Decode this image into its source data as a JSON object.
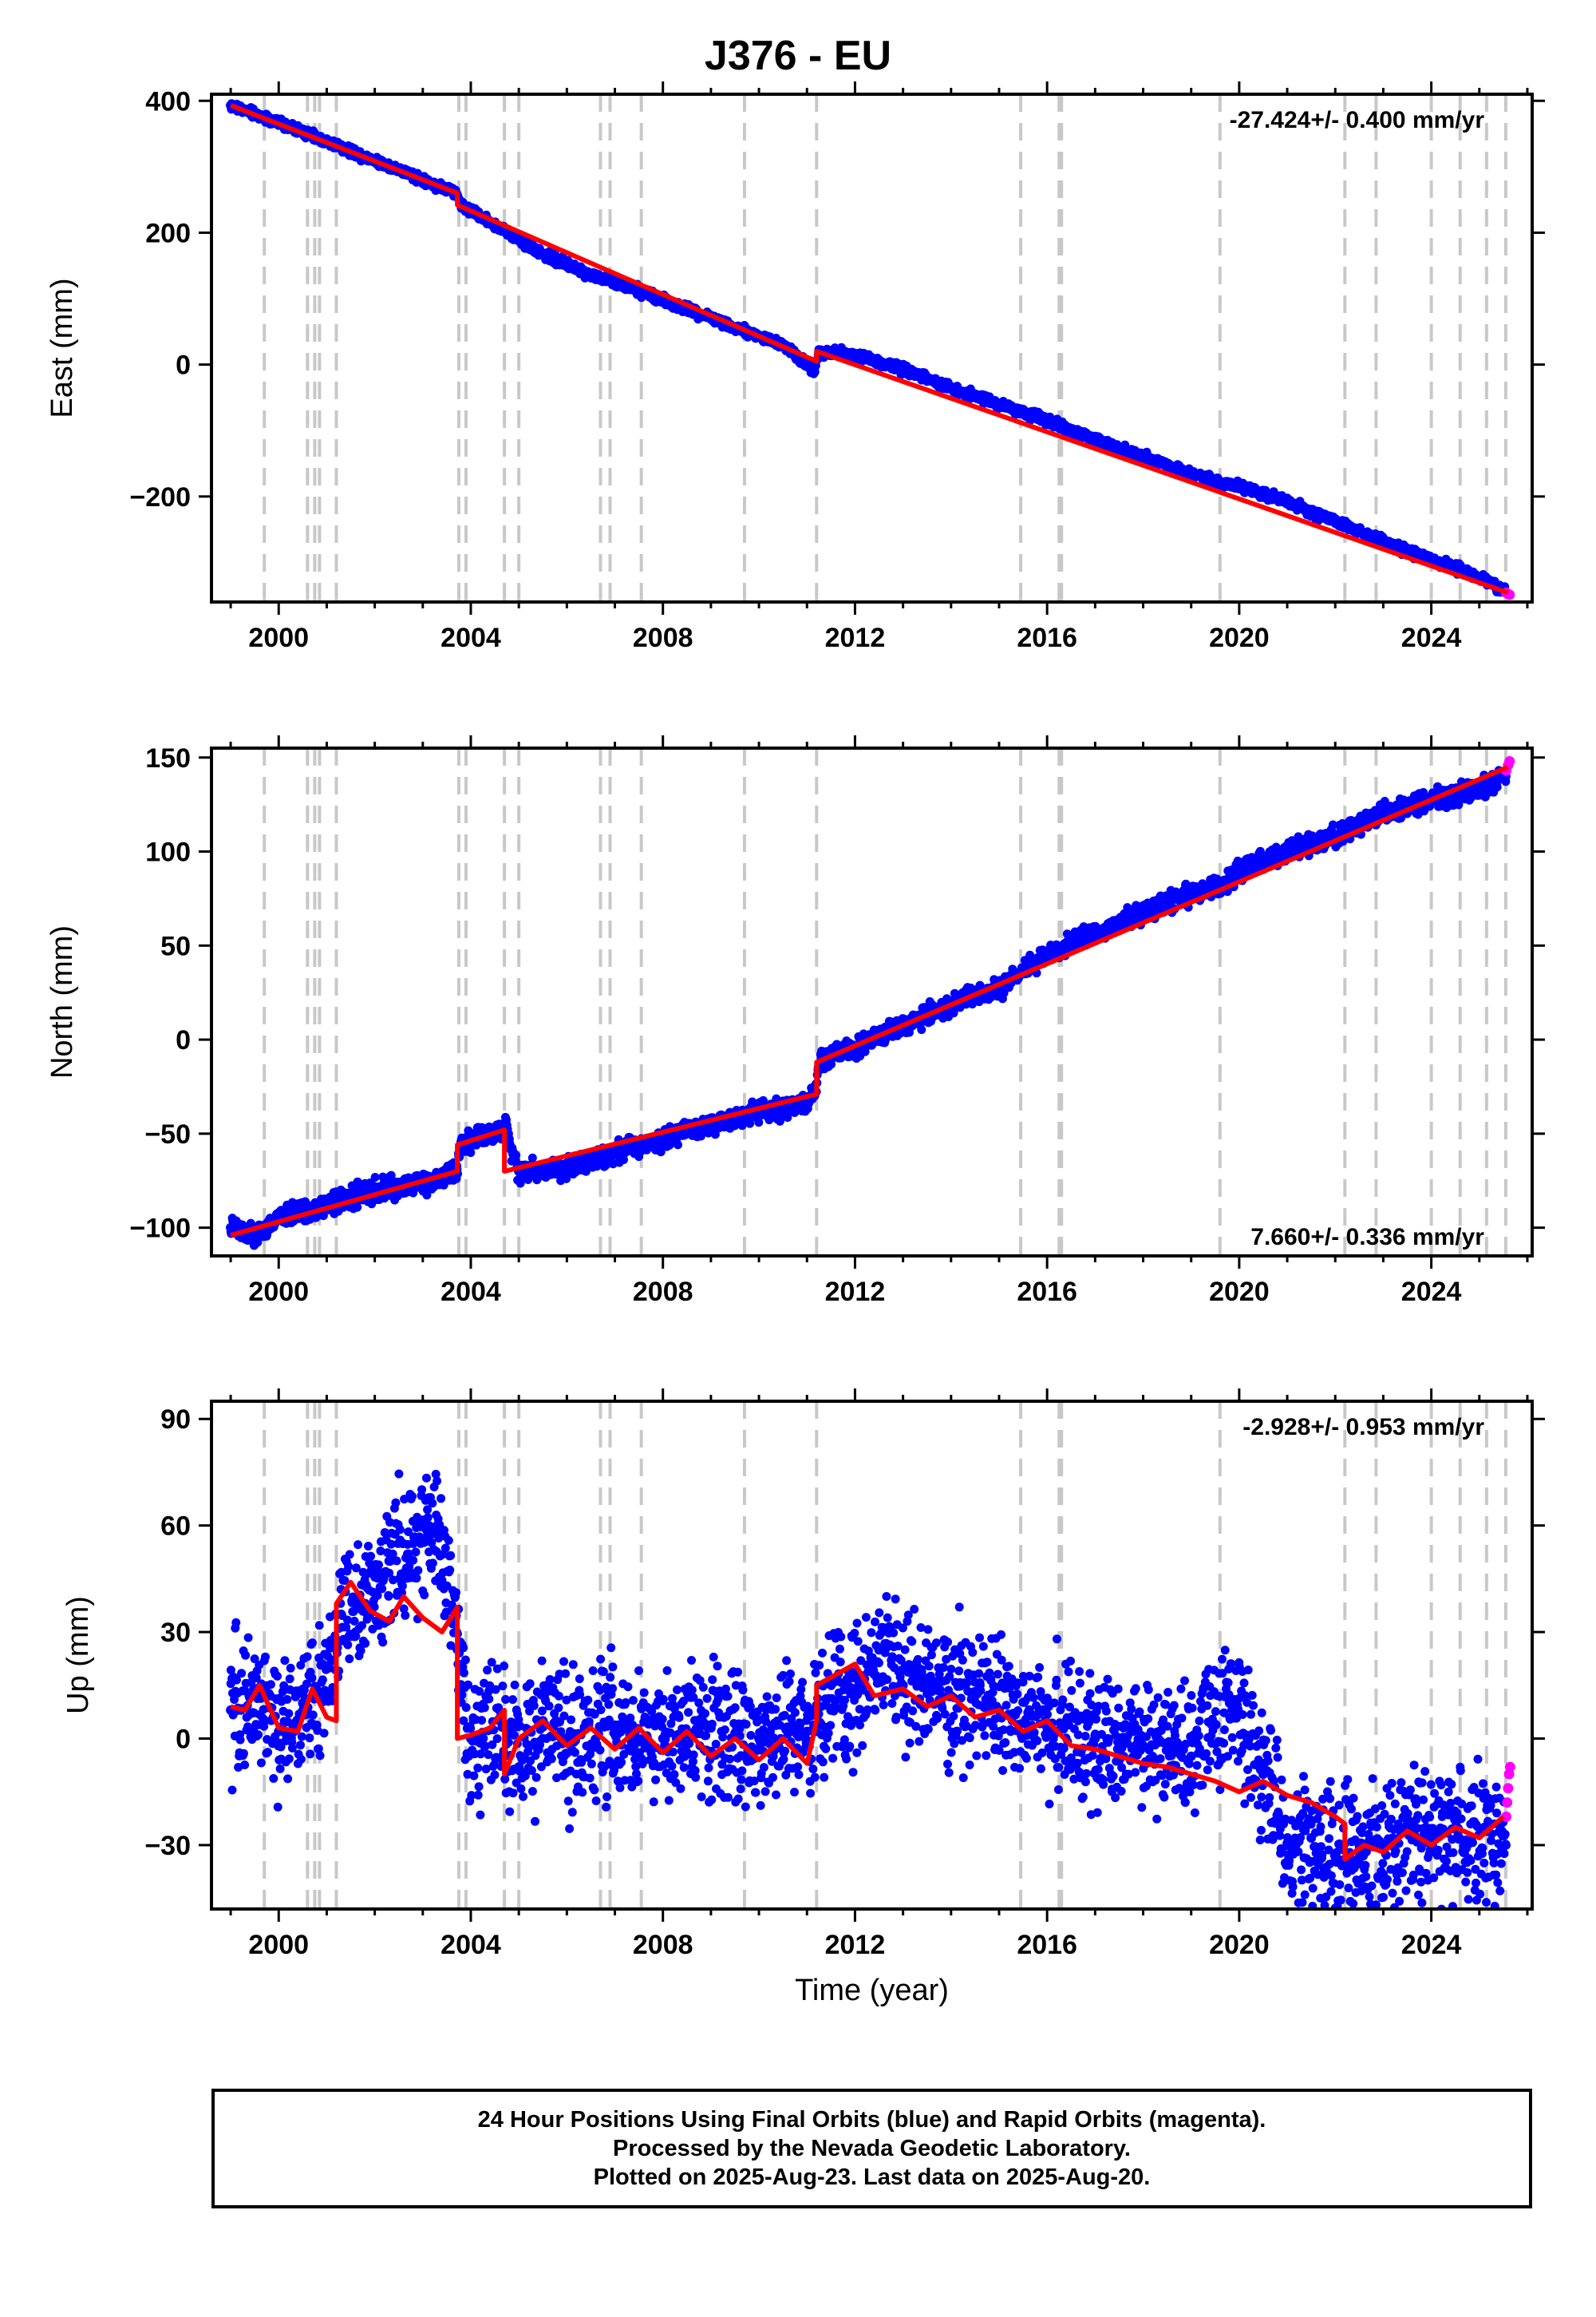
{
  "title": "J376 - EU",
  "footer": {
    "line1": "24 Hour Positions Using Final Orbits (blue) and Rapid Orbits (magenta).",
    "line2": "Processed by the Nevada Geodetic Laboratory.",
    "line3": "Plotted on 2025-Aug-23. Last data on 2025-Aug-20."
  },
  "colors": {
    "final_orbits": "#0000ff",
    "rapid_orbits": "#ff00ff",
    "model": "#ff0000",
    "event_lines": "#c8c8c8"
  },
  "event_lines_years": [
    1999.7,
    2000.6,
    2000.75,
    2000.85,
    2001.2,
    2003.75,
    2003.9,
    2004.7,
    2005.0,
    2006.7,
    2006.9,
    2007.55,
    2009.7,
    2011.2,
    2015.45,
    2016.25,
    2016.3,
    2019.6,
    2022.2,
    2022.85,
    2024.0,
    2024.6,
    2025.15,
    2025.55
  ],
  "chart_data": [
    {
      "type": "scatter",
      "name": "east",
      "title": "J376 - EU",
      "xlabel": "",
      "ylabel": "East (mm)",
      "xlim": [
        1998.6,
        2026.1
      ],
      "ylim": [
        -360,
        410
      ],
      "xticks": [
        2000,
        2004,
        2008,
        2012,
        2016,
        2020,
        2024
      ],
      "yticks": [
        400,
        200,
        0,
        -200
      ],
      "ytick_labels": [
        "400",
        "200",
        "0",
        "−200"
      ],
      "rate_text": "-27.424+/- 0.400 mm/yr",
      "rate_position": "top-right",
      "grid": false,
      "series": [
        {
          "name": "final_orbits",
          "x": [
            1999.0,
            2000.0,
            2001.0,
            2002.0,
            2003.0,
            2003.7,
            2003.8,
            2004.5,
            2005.5,
            2006.5,
            2007.5,
            2008.5,
            2009.5,
            2010.5,
            2011.15,
            2011.25,
            2012.0,
            2013.0,
            2014.0,
            2015.0,
            2016.0,
            2017.0,
            2018.0,
            2019.0,
            2019.6,
            2020.0,
            2021.0,
            2022.0,
            2023.0,
            2024.0,
            2025.0,
            2025.55
          ],
          "y": [
            393,
            367,
            338,
            310,
            281,
            259,
            243,
            212,
            168,
            136,
            112,
            84,
            57,
            30,
            -10,
            20,
            15,
            -7,
            -35,
            -60,
            -85,
            -113,
            -140,
            -165,
            -180,
            -185,
            -208,
            -238,
            -268,
            -295,
            -322,
            -345
          ]
        },
        {
          "name": "rapid_orbits",
          "x": [
            2025.56,
            2025.6,
            2025.63
          ],
          "y": [
            -346,
            -348,
            -349
          ]
        }
      ],
      "model_line": {
        "x": [
          1999.0,
          2003.72,
          2003.72,
          2011.2,
          2011.2,
          2025.6
        ],
        "y": [
          393,
          260,
          242,
          5,
          20,
          -346
        ]
      }
    },
    {
      "type": "scatter",
      "name": "north",
      "xlabel": "",
      "ylabel": "North (mm)",
      "xlim": [
        1998.6,
        2026.1
      ],
      "ylim": [
        -115,
        155
      ],
      "xticks": [
        2000,
        2004,
        2008,
        2012,
        2016,
        2020,
        2024
      ],
      "yticks": [
        150,
        100,
        50,
        0,
        -50,
        -100
      ],
      "ytick_labels": [
        "150",
        "100",
        "50",
        "0",
        "−50",
        "−100"
      ],
      "rate_text": "7.660+/- 0.336 mm/yr",
      "rate_position": "bottom-right",
      "grid": false,
      "series": [
        {
          "name": "final_orbits",
          "x": [
            1999.0,
            1999.5,
            2000.0,
            2001.0,
            2002.0,
            2003.0,
            2003.7,
            2003.8,
            2004.5,
            2004.7,
            2005.0,
            2006.0,
            2007.0,
            2008.0,
            2009.0,
            2010.0,
            2011.0,
            2011.15,
            2011.3,
            2012.0,
            2013.0,
            2014.0,
            2015.0,
            2016.0,
            2017.0,
            2018.0,
            2019.0,
            2019.6,
            2020.0,
            2021.0,
            2022.0,
            2023.0,
            2024.0,
            2025.0,
            2025.55
          ],
          "y": [
            -100,
            -105,
            -95,
            -88,
            -80,
            -76,
            -70,
            -55,
            -50,
            -45,
            -70,
            -68,
            -60,
            -52,
            -45,
            -38,
            -34,
            -30,
            -10,
            -5,
            8,
            18,
            28,
            45,
            57,
            67,
            78,
            80,
            90,
            100,
            108,
            120,
            128,
            133,
            140
          ]
        },
        {
          "name": "rapid_orbits",
          "x": [
            2025.56,
            2025.6,
            2025.63
          ],
          "y": [
            143,
            146,
            148
          ]
        }
      ],
      "model_line": {
        "x": [
          1999.0,
          2003.72,
          2003.72,
          2004.7,
          2004.7,
          2011.2,
          2011.2,
          2025.6
        ],
        "y": [
          -104,
          -70,
          -56,
          -48,
          -70,
          -29,
          -12,
          145
        ]
      }
    },
    {
      "type": "scatter",
      "name": "up",
      "xlabel": "Time (year)",
      "ylabel": "Up (mm)",
      "xlim": [
        1998.6,
        2026.1
      ],
      "ylim": [
        -48,
        95
      ],
      "xticks": [
        2000,
        2004,
        2008,
        2012,
        2016,
        2020,
        2024
      ],
      "yticks": [
        90,
        60,
        30,
        0,
        -30
      ],
      "ytick_labels": [
        "90",
        "60",
        "30",
        "0",
        "−30"
      ],
      "rate_text": "-2.928+/- 0.953 mm/yr",
      "rate_position": "top-right",
      "grid": false,
      "series": [
        {
          "name": "final_orbits",
          "x": [
            1999.0,
            1999.5,
            2000.0,
            2000.5,
            2001.0,
            2001.3,
            2001.8,
            2002.3,
            2002.8,
            2003.3,
            2003.7,
            2004.0,
            2004.6,
            2005.0,
            2005.5,
            2006.0,
            2007.0,
            2008.0,
            2009.0,
            2010.0,
            2011.0,
            2011.5,
            2012.0,
            2012.5,
            2013.0,
            2014.0,
            2015.0,
            2016.0,
            2017.0,
            2018.0,
            2019.0,
            2019.8,
            2020.5,
            2021.0,
            2021.5,
            2022.0,
            2022.5,
            2023.0,
            2024.0,
            2025.0,
            2025.55
          ],
          "y": [
            8,
            12,
            2,
            10,
            12,
            35,
            38,
            50,
            55,
            60,
            30,
            0,
            5,
            -8,
            5,
            0,
            2,
            0,
            3,
            0,
            2,
            8,
            14,
            25,
            15,
            12,
            8,
            3,
            0,
            -2,
            -5,
            10,
            -10,
            -30,
            -28,
            -33,
            -30,
            -30,
            -28,
            -27,
            -30
          ]
        },
        {
          "name": "rapid_orbits",
          "x": [
            2025.56,
            2025.58,
            2025.6,
            2025.62,
            2025.64
          ],
          "y": [
            -22,
            -18,
            -14,
            -10,
            -8
          ]
        }
      ],
      "model_line": {
        "x": [
          1999.0,
          1999.3,
          1999.6,
          2000.0,
          2000.4,
          2000.7,
          2001.0,
          2001.2,
          2001.2,
          2001.5,
          2001.9,
          2002.3,
          2002.6,
          2003.0,
          2003.4,
          2003.72,
          2003.72,
          2004.0,
          2004.4,
          2004.7,
          2004.7,
          2005.0,
          2005.5,
          2006.0,
          2006.5,
          2007.0,
          2007.5,
          2008.0,
          2008.5,
          2009.0,
          2009.5,
          2010.0,
          2010.5,
          2011.0,
          2011.2,
          2011.2,
          2011.6,
          2012.0,
          2012.4,
          2013.0,
          2013.5,
          2014.0,
          2014.5,
          2015.0,
          2015.5,
          2016.0,
          2016.5,
          2017.0,
          2017.5,
          2018.0,
          2018.5,
          2019.0,
          2019.5,
          2020.0,
          2020.5,
          2021.0,
          2021.5,
          2022.0,
          2022.2,
          2022.2,
          2022.6,
          2023.0,
          2023.5,
          2024.0,
          2024.5,
          2025.0,
          2025.5
        ],
        "y": [
          9,
          8,
          15,
          3,
          2,
          14,
          6,
          5,
          38,
          44,
          36,
          33,
          40,
          34,
          30,
          37,
          0,
          1,
          3,
          8,
          -10,
          0,
          5,
          -2,
          3,
          -3,
          3,
          -4,
          2,
          -5,
          0,
          -6,
          0,
          -7,
          5,
          15,
          18,
          21,
          12,
          14,
          9,
          12,
          6,
          8,
          2,
          5,
          -2,
          -3,
          -5,
          -7,
          -8,
          -10,
          -12,
          -15,
          -12,
          -16,
          -18,
          -22,
          -24,
          -34,
          -30,
          -32,
          -26,
          -30,
          -25,
          -28,
          -22
        ]
      }
    }
  ]
}
